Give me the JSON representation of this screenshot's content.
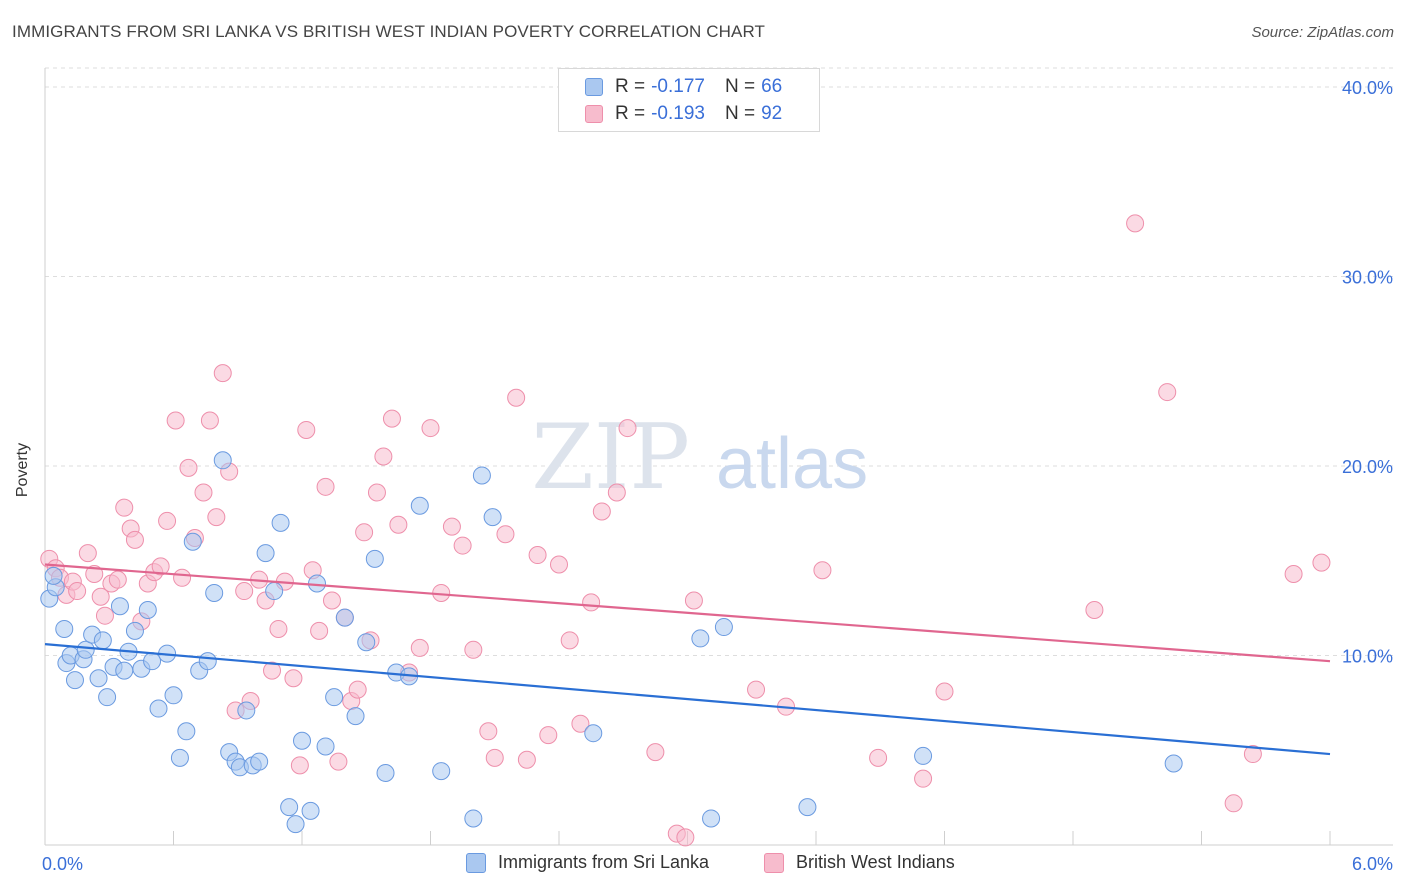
{
  "header": {
    "title": "IMMIGRANTS FROM SRI LANKA VS BRITISH WEST INDIAN POVERTY CORRELATION CHART",
    "source": "Source: ZipAtlas.com"
  },
  "legend": {
    "rows": [
      {
        "r_label": "R =",
        "r_value": "-0.177",
        "n_label": "N =",
        "n_value": "66"
      },
      {
        "r_label": "R =",
        "r_value": "-0.193",
        "n_label": "N =",
        "n_value": "92"
      }
    ]
  },
  "bottom_legend": {
    "series1": "Immigrants from Sri Lanka",
    "series2": "British West Indians"
  },
  "colors": {
    "series1_fill": "#aac8f0",
    "series1_stroke": "#6a9ae0",
    "series1_line": "#2a6fd4",
    "series2_fill": "#f7bccd",
    "series2_stroke": "#ee8fab",
    "series2_line": "#e0668f",
    "tick_label": "#3a6fd8",
    "grid": "#dddddd",
    "watermark": "#dde3ec"
  },
  "watermark": {
    "part1": "ZIP",
    "part2": "atlas"
  },
  "chart_data": {
    "type": "scatter",
    "title": "IMMIGRANTS FROM SRI LANKA VS BRITISH WEST INDIAN POVERTY CORRELATION CHART",
    "xlabel": "",
    "ylabel": "Poverty",
    "xlim": [
      0,
      6
    ],
    "ylim": [
      0,
      41
    ],
    "x_tick_labels": [
      {
        "value": 0,
        "label": "0.0%"
      },
      {
        "value": 6,
        "label": "6.0%"
      }
    ],
    "y_tick_labels": [
      {
        "value": 10,
        "label": "10.0%"
      },
      {
        "value": 20,
        "label": "20.0%"
      },
      {
        "value": 30,
        "label": "30.0%"
      },
      {
        "value": 40,
        "label": "40.0%"
      }
    ],
    "grid": "horizontal dashed",
    "legend_position": "top-center",
    "series": [
      {
        "name": "Immigrants from Sri Lanka",
        "r": -0.177,
        "n": 66,
        "trend": {
          "x": [
            0,
            6
          ],
          "y": [
            10.6,
            4.8
          ]
        },
        "points": [
          [
            0.02,
            13.0
          ],
          [
            0.05,
            13.6
          ],
          [
            0.09,
            11.4
          ],
          [
            0.1,
            9.6
          ],
          [
            0.12,
            10.0
          ],
          [
            0.14,
            8.7
          ],
          [
            0.18,
            9.8
          ],
          [
            0.19,
            10.3
          ],
          [
            0.22,
            11.1
          ],
          [
            0.25,
            8.8
          ],
          [
            0.27,
            10.8
          ],
          [
            0.29,
            7.8
          ],
          [
            0.32,
            9.4
          ],
          [
            0.35,
            12.6
          ],
          [
            0.37,
            9.2
          ],
          [
            0.39,
            10.2
          ],
          [
            0.42,
            11.3
          ],
          [
            0.45,
            9.3
          ],
          [
            0.48,
            12.4
          ],
          [
            0.5,
            9.7
          ],
          [
            0.53,
            7.2
          ],
          [
            0.57,
            10.1
          ],
          [
            0.6,
            7.9
          ],
          [
            0.63,
            4.6
          ],
          [
            0.66,
            6.0
          ],
          [
            0.69,
            16.0
          ],
          [
            0.72,
            9.2
          ],
          [
            0.76,
            9.7
          ],
          [
            0.79,
            13.3
          ],
          [
            0.83,
            20.3
          ],
          [
            0.86,
            4.9
          ],
          [
            0.89,
            4.4
          ],
          [
            0.91,
            4.1
          ],
          [
            0.94,
            7.1
          ],
          [
            0.97,
            4.2
          ],
          [
            1.0,
            4.4
          ],
          [
            1.03,
            15.4
          ],
          [
            1.07,
            13.4
          ],
          [
            1.1,
            17.0
          ],
          [
            1.14,
            2.0
          ],
          [
            1.17,
            1.1
          ],
          [
            1.2,
            5.5
          ],
          [
            1.24,
            1.8
          ],
          [
            1.27,
            13.8
          ],
          [
            1.31,
            5.2
          ],
          [
            1.35,
            7.8
          ],
          [
            1.4,
            12.0
          ],
          [
            1.45,
            6.8
          ],
          [
            1.5,
            10.7
          ],
          [
            1.54,
            15.1
          ],
          [
            1.59,
            3.8
          ],
          [
            1.64,
            9.1
          ],
          [
            1.7,
            8.9
          ],
          [
            1.75,
            17.9
          ],
          [
            1.85,
            3.9
          ],
          [
            2.0,
            1.4
          ],
          [
            2.04,
            19.5
          ],
          [
            2.09,
            17.3
          ],
          [
            2.56,
            5.9
          ],
          [
            3.06,
            10.9
          ],
          [
            3.17,
            11.5
          ],
          [
            3.11,
            1.4
          ],
          [
            3.56,
            2.0
          ],
          [
            4.1,
            4.7
          ],
          [
            5.27,
            4.3
          ],
          [
            0.04,
            14.2
          ]
        ]
      },
      {
        "name": "British West Indians",
        "r": -0.193,
        "n": 92,
        "trend": {
          "x": [
            0,
            6
          ],
          "y": [
            14.8,
            9.7
          ]
        },
        "points": [
          [
            0.02,
            15.1
          ],
          [
            0.05,
            14.6
          ],
          [
            0.07,
            14.1
          ],
          [
            0.1,
            13.2
          ],
          [
            0.13,
            13.9
          ],
          [
            0.15,
            13.4
          ],
          [
            0.2,
            15.4
          ],
          [
            0.23,
            14.3
          ],
          [
            0.26,
            13.1
          ],
          [
            0.28,
            12.1
          ],
          [
            0.31,
            13.8
          ],
          [
            0.34,
            14.0
          ],
          [
            0.37,
            17.8
          ],
          [
            0.4,
            16.7
          ],
          [
            0.42,
            16.1
          ],
          [
            0.45,
            11.8
          ],
          [
            0.48,
            13.8
          ],
          [
            0.51,
            14.4
          ],
          [
            0.54,
            14.7
          ],
          [
            0.57,
            17.1
          ],
          [
            0.61,
            22.4
          ],
          [
            0.64,
            14.1
          ],
          [
            0.67,
            19.9
          ],
          [
            0.7,
            16.2
          ],
          [
            0.74,
            18.6
          ],
          [
            0.77,
            22.4
          ],
          [
            0.8,
            17.3
          ],
          [
            0.83,
            24.9
          ],
          [
            0.86,
            19.7
          ],
          [
            0.89,
            7.1
          ],
          [
            0.93,
            13.4
          ],
          [
            0.96,
            7.6
          ],
          [
            1.0,
            14.0
          ],
          [
            1.03,
            12.9
          ],
          [
            1.06,
            9.2
          ],
          [
            1.09,
            11.4
          ],
          [
            1.12,
            13.9
          ],
          [
            1.16,
            8.8
          ],
          [
            1.19,
            4.2
          ],
          [
            1.22,
            21.9
          ],
          [
            1.25,
            14.5
          ],
          [
            1.28,
            11.3
          ],
          [
            1.31,
            18.9
          ],
          [
            1.34,
            12.9
          ],
          [
            1.37,
            4.4
          ],
          [
            1.4,
            12.0
          ],
          [
            1.43,
            7.6
          ],
          [
            1.46,
            8.2
          ],
          [
            1.49,
            16.5
          ],
          [
            1.52,
            10.8
          ],
          [
            1.55,
            18.6
          ],
          [
            1.58,
            20.5
          ],
          [
            1.62,
            22.5
          ],
          [
            1.65,
            16.9
          ],
          [
            1.7,
            9.1
          ],
          [
            1.75,
            10.4
          ],
          [
            1.8,
            22.0
          ],
          [
            1.85,
            13.3
          ],
          [
            1.9,
            16.8
          ],
          [
            1.95,
            15.8
          ],
          [
            2.0,
            10.3
          ],
          [
            2.07,
            6.0
          ],
          [
            2.1,
            4.6
          ],
          [
            2.15,
            16.4
          ],
          [
            2.2,
            23.6
          ],
          [
            2.25,
            4.5
          ],
          [
            2.3,
            15.3
          ],
          [
            2.35,
            5.8
          ],
          [
            2.4,
            14.8
          ],
          [
            2.45,
            10.8
          ],
          [
            2.5,
            6.4
          ],
          [
            2.55,
            12.8
          ],
          [
            2.6,
            17.6
          ],
          [
            2.67,
            18.6
          ],
          [
            2.72,
            22.0
          ],
          [
            2.85,
            4.9
          ],
          [
            2.95,
            0.6
          ],
          [
            2.99,
            0.4
          ],
          [
            3.03,
            12.9
          ],
          [
            3.32,
            8.2
          ],
          [
            3.46,
            7.3
          ],
          [
            3.63,
            14.5
          ],
          [
            3.89,
            4.6
          ],
          [
            4.1,
            3.5
          ],
          [
            4.2,
            8.1
          ],
          [
            4.9,
            12.4
          ],
          [
            5.09,
            32.8
          ],
          [
            5.24,
            23.9
          ],
          [
            5.55,
            2.2
          ],
          [
            5.64,
            4.8
          ],
          [
            5.83,
            14.3
          ],
          [
            5.96,
            14.9
          ]
        ]
      }
    ]
  }
}
